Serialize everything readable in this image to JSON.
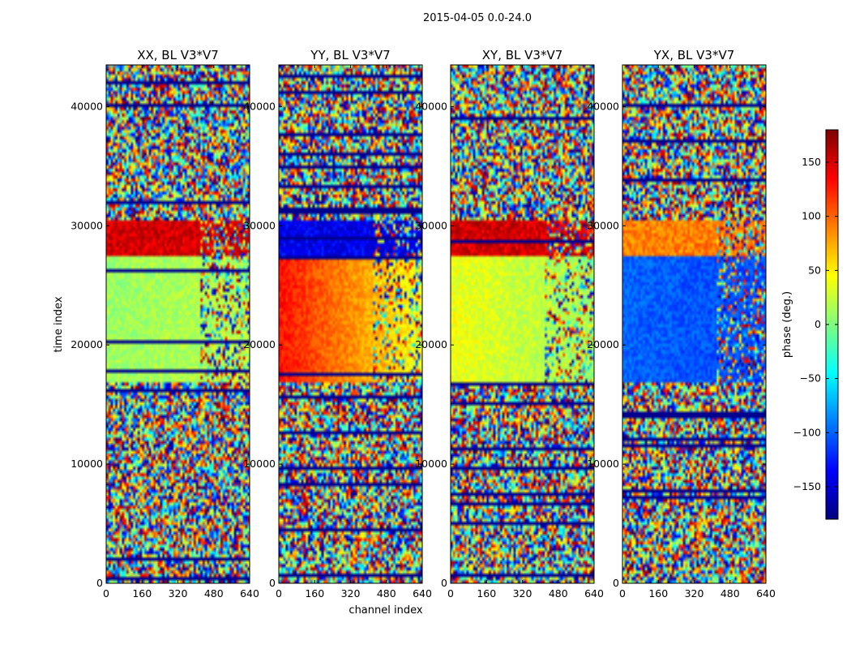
{
  "figure": {
    "suptitle": "2015-04-05 0.0-24.0",
    "xlabel": "channel index",
    "ylabel": "time index"
  },
  "colors": {
    "colormap": "jet",
    "jet_stops": [
      "#00007f",
      "#0000ff",
      "#007fff",
      "#00ffff",
      "#7fff7f",
      "#ffff00",
      "#ff7f00",
      "#ff0000",
      "#7f0000"
    ]
  },
  "chart_data": [
    {
      "type": "heatmap",
      "title": "XX, BL V3*V7",
      "xlabel": "",
      "ylabel": "time index",
      "xlim": [
        0,
        640
      ],
      "ylim": [
        0,
        43500
      ],
      "xticks": [
        "0",
        "160",
        "320",
        "480",
        "640"
      ],
      "yticks": [
        "0",
        "10000",
        "20000",
        "30000",
        "40000"
      ],
      "value_label": "phase (deg.)",
      "coherent_bands": [
        {
          "t_start": 16800,
          "t_end": 30500,
          "phase_low_channels": 10,
          "phase_high_channels": 20,
          "dominant": "green-yellow, red top"
        }
      ]
    },
    {
      "type": "heatmap",
      "title": "YY, BL V3*V7",
      "xlabel": "channel index",
      "ylabel": "",
      "xlim": [
        0,
        640
      ],
      "ylim": [
        0,
        43500
      ],
      "xticks": [
        "0",
        "160",
        "320",
        "480",
        "640"
      ],
      "yticks": [
        "0",
        "10000",
        "20000",
        "30000",
        "40000"
      ],
      "value_label": "phase (deg.)",
      "coherent_bands": [
        {
          "t_start": 16800,
          "t_end": 30500,
          "phase_low_channels": 130,
          "phase_high_channels": 40,
          "dominant": "red-orange, blue top"
        }
      ]
    },
    {
      "type": "heatmap",
      "title": "XY, BL V3*V7",
      "xlabel": "",
      "ylabel": "",
      "xlim": [
        0,
        640
      ],
      "ylim": [
        0,
        43500
      ],
      "xticks": [
        "0",
        "160",
        "320",
        "480",
        "640"
      ],
      "yticks": [
        "0",
        "10000",
        "20000",
        "30000",
        "40000"
      ],
      "value_label": "phase (deg.)",
      "coherent_bands": [
        {
          "t_start": 16800,
          "t_end": 30500,
          "phase_low_channels": 40,
          "phase_high_channels": 10,
          "dominant": "green-yellow, red top"
        }
      ]
    },
    {
      "type": "heatmap",
      "title": "YX, BL V3*V7",
      "xlabel": "",
      "ylabel": "",
      "xlim": [
        0,
        640
      ],
      "ylim": [
        0,
        43500
      ],
      "xticks": [
        "0",
        "160",
        "320",
        "480",
        "640"
      ],
      "yticks": [
        "0",
        "10000",
        "20000",
        "30000",
        "40000"
      ],
      "value_label": "phase (deg.)",
      "coherent_bands": [
        {
          "t_start": 16800,
          "t_end": 30500,
          "phase_low_channels": -100,
          "phase_high_channels": -110,
          "dominant": "blue, orange top"
        }
      ]
    }
  ],
  "colorbar": {
    "label": "phase (deg.)",
    "range": [
      -180,
      180
    ],
    "ticks": [
      "150",
      "100",
      "50",
      "0",
      "−50",
      "−100",
      "−150"
    ],
    "tick_values": [
      150,
      100,
      50,
      0,
      -50,
      -100,
      -150
    ]
  }
}
